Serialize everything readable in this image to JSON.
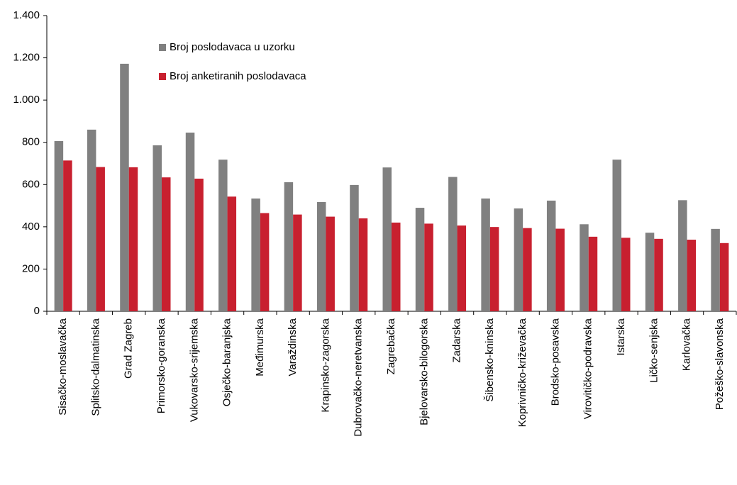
{
  "chart_data": {
    "type": "bar",
    "categories": [
      "Sisačko-moslavačka",
      "Splitsko-dalmatinska",
      "Grad Zagreb",
      "Primorsko-goranska",
      "Vukovarsko-srijemska",
      "Osječko-baranjska",
      "Međimurska",
      "Varaždinska",
      "Krapinsko-zagorska",
      "Dubrovačko-neretvanska",
      "Zagrebačka",
      "Bjelovarsko-bilogorska",
      "Zadarska",
      "Šibensko-kninska",
      "Koprivničko-križevačka",
      "Brodsko-posavska",
      "Virovitičko-podravska",
      "Istarska",
      "Ličko-senjska",
      "Karlovačka",
      "Požeško-slavonska"
    ],
    "series": [
      {
        "name": "Broj poslodavaca u uzorku",
        "color": "#808080",
        "values": [
          806,
          860,
          1172,
          786,
          846,
          718,
          534,
          611,
          517,
          598,
          681,
          490,
          636,
          534,
          487,
          524,
          412,
          718,
          372,
          526,
          390
        ]
      },
      {
        "name": "Broj anketiranih poslodavaca",
        "color": "#c8202f",
        "values": [
          714,
          683,
          682,
          634,
          628,
          543,
          465,
          458,
          448,
          440,
          420,
          415,
          406,
          399,
          394,
          391,
          353,
          348,
          343,
          339,
          323
        ]
      }
    ],
    "ylim": [
      0,
      1400
    ],
    "yticks": [
      0,
      200,
      400,
      600,
      800,
      {
        "value": 1000,
        "label": "1.000"
      },
      {
        "value": 1200,
        "label": "1.200"
      },
      {
        "value": 1400,
        "label": "1.400"
      }
    ],
    "grid": false,
    "legend": "top-left"
  }
}
